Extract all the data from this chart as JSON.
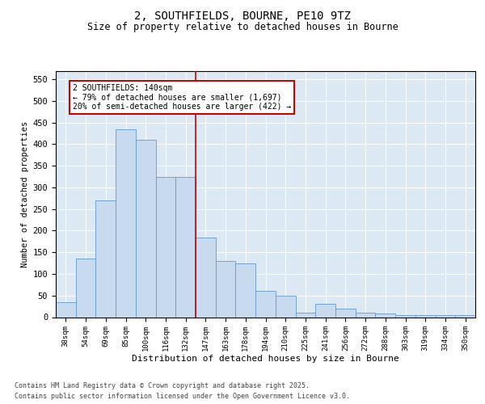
{
  "title": "2, SOUTHFIELDS, BOURNE, PE10 9TZ",
  "subtitle": "Size of property relative to detached houses in Bourne",
  "xlabel": "Distribution of detached houses by size in Bourne",
  "ylabel": "Number of detached properties",
  "categories": [
    "38sqm",
    "54sqm",
    "69sqm",
    "85sqm",
    "100sqm",
    "116sqm",
    "132sqm",
    "147sqm",
    "163sqm",
    "178sqm",
    "194sqm",
    "210sqm",
    "225sqm",
    "241sqm",
    "256sqm",
    "272sqm",
    "288sqm",
    "303sqm",
    "319sqm",
    "334sqm",
    "350sqm"
  ],
  "values": [
    35,
    135,
    270,
    435,
    410,
    325,
    325,
    185,
    130,
    125,
    60,
    50,
    10,
    30,
    20,
    10,
    8,
    5,
    5,
    5,
    5
  ],
  "bar_color": "#c8daee",
  "bar_edge_color": "#6699cc",
  "vline_color": "#cc0000",
  "annotation_text": "2 SOUTHFIELDS: 140sqm\n← 79% of detached houses are smaller (1,697)\n20% of semi-detached houses are larger (422) →",
  "annotation_box_facecolor": "#ffffff",
  "annotation_box_edgecolor": "#cc0000",
  "ylim": [
    0,
    570
  ],
  "yticks": [
    0,
    50,
    100,
    150,
    200,
    250,
    300,
    350,
    400,
    450,
    500,
    550
  ],
  "bg_color": "#dce9f5",
  "footer": "Contains HM Land Registry data © Crown copyright and database right 2025.\nContains public sector information licensed under the Open Government Licence v3.0."
}
